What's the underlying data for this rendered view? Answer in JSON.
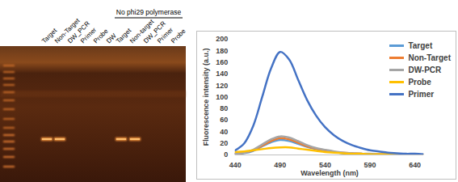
{
  "gel": {
    "lanes": [
      {
        "label": "Target",
        "band": true
      },
      {
        "label": "Non-Target",
        "band": true
      },
      {
        "label": "DW_PCR",
        "band": false
      },
      {
        "label": "Primer",
        "band": false
      },
      {
        "label": "Probe",
        "band": false
      },
      {
        "label": "DW",
        "band": false
      }
    ],
    "no_enzyme_group": {
      "label": "No phi29 polymerase",
      "lanes": [
        {
          "label": "Target",
          "band": true
        },
        {
          "label": "Non-target",
          "band": true
        },
        {
          "label": "DW_PCR",
          "band": false
        },
        {
          "label": "Primer",
          "band": false
        },
        {
          "label": "Probe",
          "band": false
        }
      ]
    }
  },
  "chart_data": {
    "type": "line",
    "xlabel": "Wavelength (nm)",
    "ylabel": "Fluorescence intensity (a.u.)",
    "x": [
      440,
      450,
      460,
      470,
      480,
      490,
      500,
      510,
      520,
      530,
      540,
      550,
      560,
      570,
      580,
      590,
      600,
      610,
      620,
      630,
      640,
      650
    ],
    "xlim": [
      440,
      650
    ],
    "xticks": [
      440,
      490,
      540,
      590,
      640
    ],
    "ylim": [
      0,
      200
    ],
    "yticks": [
      0,
      20,
      40,
      60,
      80,
      100,
      120,
      140,
      160,
      180,
      200
    ],
    "grid": false,
    "legend": "top-right",
    "series": [
      {
        "name": "Target",
        "color": "#5b9bd5",
        "values": [
          2,
          3,
          7,
          15,
          22,
          26,
          24,
          19,
          14,
          10,
          7,
          5,
          3,
          2,
          2,
          1,
          1,
          1,
          0,
          0,
          0,
          0
        ]
      },
      {
        "name": "Non-Target",
        "color": "#ed7d31",
        "values": [
          2,
          4,
          8,
          16,
          24,
          29,
          27,
          21,
          15,
          11,
          8,
          5,
          4,
          3,
          2,
          1,
          1,
          1,
          1,
          0,
          0,
          0
        ]
      },
      {
        "name": "DW-PCR",
        "color": "#a5a5a5",
        "values": [
          2,
          4,
          9,
          18,
          27,
          32,
          30,
          24,
          17,
          12,
          9,
          6,
          4,
          3,
          2,
          2,
          1,
          1,
          1,
          0,
          0,
          0
        ]
      },
      {
        "name": "Probe",
        "color": "#ffc000",
        "values": [
          5,
          6,
          8,
          10,
          12,
          13,
          13,
          11,
          9,
          7,
          5,
          4,
          3,
          2,
          2,
          1,
          1,
          1,
          0,
          0,
          0,
          0
        ]
      },
      {
        "name": "Primer",
        "color": "#4472c4",
        "values": [
          8,
          20,
          50,
          100,
          150,
          178,
          165,
          130,
          95,
          68,
          48,
          34,
          24,
          17,
          12,
          8,
          6,
          4,
          3,
          2,
          2,
          1
        ]
      }
    ]
  }
}
